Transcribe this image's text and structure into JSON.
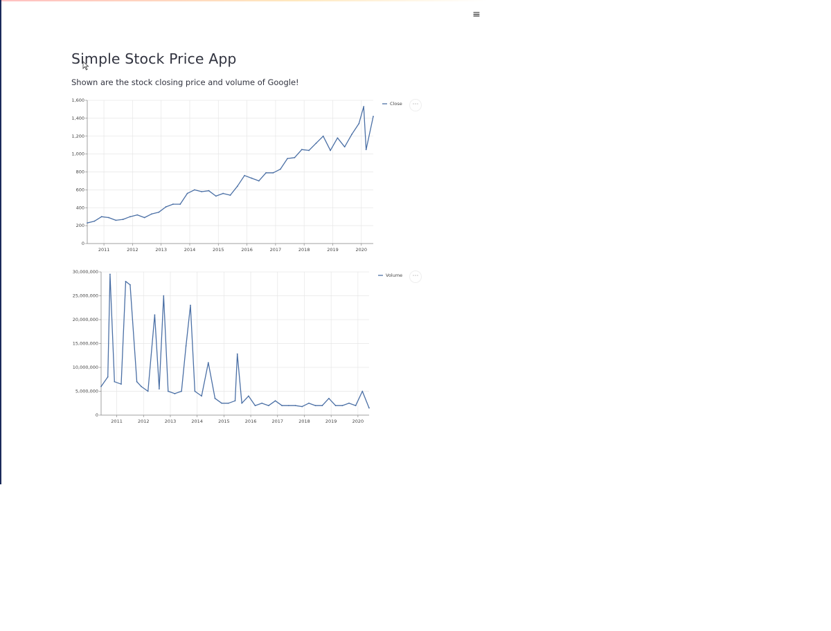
{
  "header": {
    "menu_icon": "hamburger-icon",
    "menu_glyph": "≡"
  },
  "page": {
    "title": "Simple Stock Price App",
    "subtitle": "Shown are the stock closing price and volume of Google!"
  },
  "colors": {
    "line": "#4a6fa5",
    "grid": "#e6e6e6",
    "axis": "#888888"
  },
  "chart_data": [
    {
      "type": "line",
      "legend": "Close",
      "legend_position": "top-right",
      "x_ticks": [
        "2011",
        "2012",
        "2013",
        "2014",
        "2015",
        "2016",
        "2017",
        "2018",
        "2019",
        "2020"
      ],
      "y_ticks": [
        "0",
        "200",
        "400",
        "600",
        "800",
        "1,000",
        "1,200",
        "1,400",
        "1,600"
      ],
      "ylim": [
        0,
        1600
      ],
      "xlim": [
        "2010-06",
        "2020-06"
      ],
      "grid": true,
      "x": [
        "2010-06",
        "2010-09",
        "2010-12",
        "2011-03",
        "2011-06",
        "2011-09",
        "2011-12",
        "2012-03",
        "2012-06",
        "2012-09",
        "2012-12",
        "2013-03",
        "2013-06",
        "2013-09",
        "2013-12",
        "2014-03",
        "2014-06",
        "2014-09",
        "2014-12",
        "2015-03",
        "2015-06",
        "2015-09",
        "2015-12",
        "2016-03",
        "2016-06",
        "2016-09",
        "2016-12",
        "2017-03",
        "2017-06",
        "2017-09",
        "2017-12",
        "2018-03",
        "2018-06",
        "2018-09",
        "2018-12",
        "2019-03",
        "2019-06",
        "2019-09",
        "2019-12",
        "2020-02",
        "2020-03",
        "2020-06"
      ],
      "values": [
        230,
        250,
        300,
        290,
        260,
        270,
        300,
        320,
        290,
        330,
        350,
        410,
        440,
        440,
        560,
        600,
        580,
        590,
        530,
        560,
        540,
        640,
        760,
        730,
        700,
        790,
        790,
        830,
        950,
        960,
        1050,
        1040,
        1120,
        1200,
        1040,
        1180,
        1080,
        1220,
        1340,
        1530,
        1050,
        1420
      ]
    },
    {
      "type": "line",
      "legend": "Volume",
      "legend_position": "top-right",
      "x_ticks": [
        "2011",
        "2012",
        "2013",
        "2014",
        "2015",
        "2016",
        "2017",
        "2018",
        "2019",
        "2020"
      ],
      "y_ticks": [
        "0",
        "5,000,000",
        "10,000,000",
        "15,000,000",
        "20,000,000",
        "25,000,000",
        "30,000,000"
      ],
      "ylim": [
        0,
        30000000
      ],
      "xlim": [
        "2010-06",
        "2020-06"
      ],
      "grid": true,
      "x": [
        "2010-06",
        "2010-09",
        "2010-10",
        "2010-12",
        "2011-03",
        "2011-05",
        "2011-07",
        "2011-10",
        "2011-12",
        "2012-03",
        "2012-06",
        "2012-08",
        "2012-10",
        "2012-12",
        "2013-03",
        "2013-06",
        "2013-08",
        "2013-10",
        "2013-12",
        "2014-03",
        "2014-06",
        "2014-09",
        "2014-12",
        "2015-03",
        "2015-06",
        "2015-07",
        "2015-09",
        "2015-12",
        "2016-03",
        "2016-06",
        "2016-09",
        "2016-12",
        "2017-03",
        "2017-06",
        "2017-09",
        "2017-12",
        "2018-03",
        "2018-06",
        "2018-09",
        "2018-12",
        "2019-03",
        "2019-06",
        "2019-09",
        "2019-12",
        "2020-03",
        "2020-06"
      ],
      "values": [
        6000000,
        8000000,
        29500000,
        7000000,
        6500000,
        28000000,
        27300000,
        7000000,
        6000000,
        5000000,
        21000000,
        5500000,
        25000000,
        5000000,
        4500000,
        5000000,
        14500000,
        23000000,
        5000000,
        4000000,
        11000000,
        3500000,
        2500000,
        2500000,
        3000000,
        12800000,
        2500000,
        4000000,
        2000000,
        2500000,
        2000000,
        3000000,
        2000000,
        2000000,
        2000000,
        1800000,
        2500000,
        2000000,
        2000000,
        3500000,
        2000000,
        2000000,
        2500000,
        2000000,
        5000000,
        1500000
      ]
    }
  ]
}
